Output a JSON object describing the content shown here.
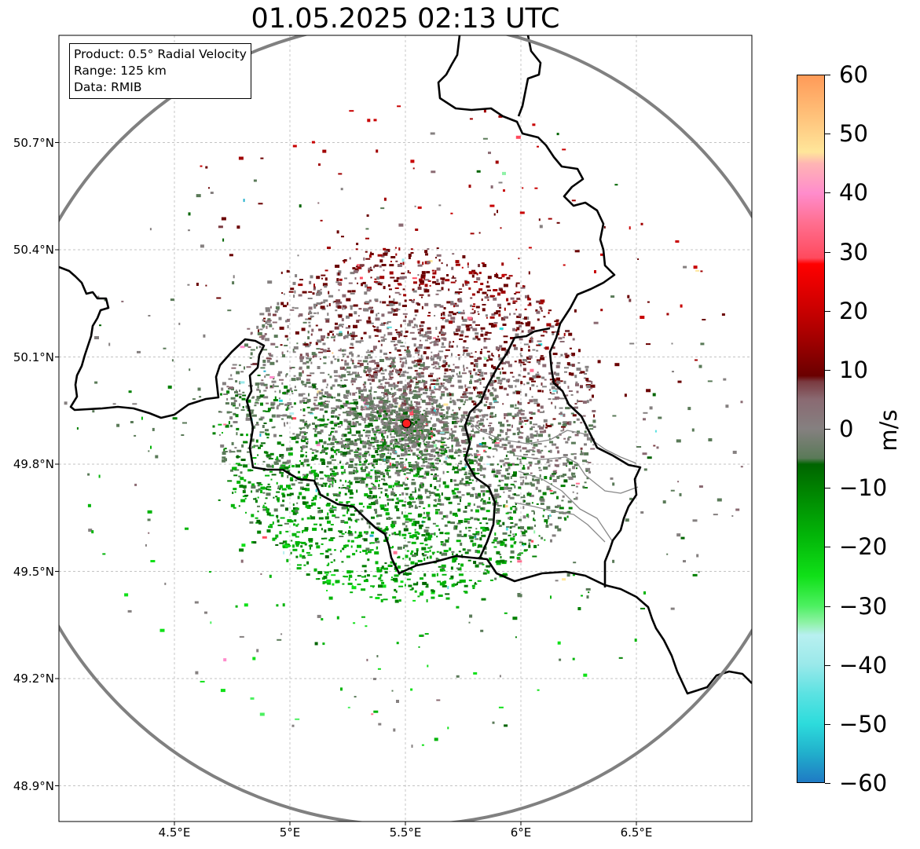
{
  "title": "01.05.2025 02:13 UTC",
  "info_box": {
    "product": "Product: 0.5° Radial Velocity",
    "range": "Range: 125 km",
    "data": "Data: RMIB"
  },
  "map": {
    "lon_range": [
      4.0,
      7.0
    ],
    "lat_range": [
      48.8,
      51.0
    ],
    "lon_ticks": [
      "4.5°E",
      "5°E",
      "5.5°E",
      "6°E",
      "6.5°E"
    ],
    "lat_ticks": [
      "48.9°N",
      "49.2°N",
      "49.5°N",
      "49.8°N",
      "50.1°N",
      "50.4°N",
      "50.7°N"
    ],
    "gridlines": true,
    "radar_site": {
      "lon": 5.505,
      "lat": 49.914,
      "marker_color": "#ff2020"
    },
    "range_ring_km": 125,
    "ring_color": "#808080",
    "border_color": "#000000",
    "admin_border_color": "#888888"
  },
  "colorbar": {
    "label": "m/s",
    "min": -60,
    "max": 60,
    "ticks": [
      "60",
      "50",
      "40",
      "30",
      "20",
      "10",
      "0",
      "−10",
      "−20",
      "−30",
      "−40",
      "−50",
      "−60"
    ],
    "stops": [
      {
        "v": -60,
        "c": "#1f7ac4"
      },
      {
        "v": -55,
        "c": "#21b0cc"
      },
      {
        "v": -50,
        "c": "#2ddcdc"
      },
      {
        "v": -45,
        "c": "#5be2e2"
      },
      {
        "v": -40,
        "c": "#9ae9ea"
      },
      {
        "v": -35,
        "c": "#b8f0f0"
      },
      {
        "v": -33,
        "c": "#90f2a8"
      },
      {
        "v": -30,
        "c": "#4cf060"
      },
      {
        "v": -25,
        "c": "#10e018"
      },
      {
        "v": -18,
        "c": "#02b408"
      },
      {
        "v": -10,
        "c": "#008000"
      },
      {
        "v": -6,
        "c": "#006400"
      },
      {
        "v": -5,
        "c": "#5a7a58"
      },
      {
        "v": 0,
        "c": "#858080"
      },
      {
        "v": 5,
        "c": "#8a6a72"
      },
      {
        "v": 8,
        "c": "#7a3a40"
      },
      {
        "v": 9,
        "c": "#6a0000"
      },
      {
        "v": 15,
        "c": "#a00000"
      },
      {
        "v": 20,
        "c": "#c80000"
      },
      {
        "v": 28,
        "c": "#ff0000"
      },
      {
        "v": 29,
        "c": "#ff4a5e"
      },
      {
        "v": 35,
        "c": "#ff6f90"
      },
      {
        "v": 40,
        "c": "#ff8ccc"
      },
      {
        "v": 45,
        "c": "#ffb4b4"
      },
      {
        "v": 47,
        "c": "#ffe69a"
      },
      {
        "v": 52,
        "c": "#ffc880"
      },
      {
        "v": 60,
        "c": "#ff9a58"
      }
    ]
  }
}
